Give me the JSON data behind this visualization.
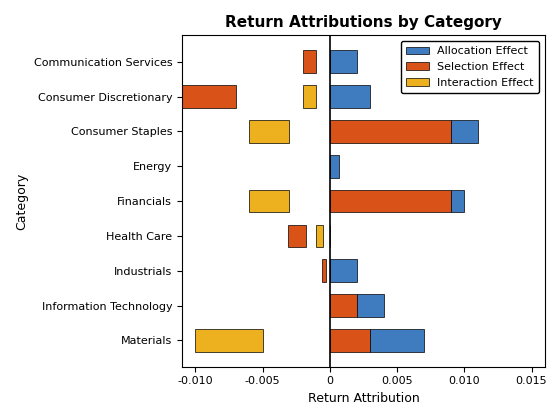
{
  "categories": [
    "Communication Services",
    "Consumer Discretionary",
    "Consumer Staples",
    "Energy",
    "Financials",
    "Health Care",
    "Industrials",
    "Information Technology",
    "Materials"
  ],
  "allocation_effect": [
    0.002,
    0.003,
    0.002,
    0.0007,
    0.001,
    0.0,
    0.002,
    0.002,
    0.004
  ],
  "selection_effect": [
    -0.001,
    -0.006,
    0.009,
    0.0,
    0.009,
    -0.0013,
    -0.0003,
    0.002,
    0.003
  ],
  "interaction_effect": [
    0.0,
    -0.001,
    -0.003,
    0.0,
    -0.003,
    -0.0005,
    0.0,
    0.0,
    -0.005
  ],
  "title": "Return Attributions by Category",
  "xlabel": "Return Attribution",
  "ylabel": "Category",
  "xlim": [
    -0.011,
    0.016
  ],
  "xticks": [
    -0.01,
    -0.005,
    0.0,
    0.005,
    0.01,
    0.015
  ],
  "bar_colors": [
    "#3f7bbf",
    "#d95319",
    "#edb120"
  ],
  "legend_labels": [
    "Allocation Effect",
    "Selection Effect",
    "Interaction Effect"
  ],
  "figsize": [
    5.6,
    4.2
  ],
  "dpi": 100
}
